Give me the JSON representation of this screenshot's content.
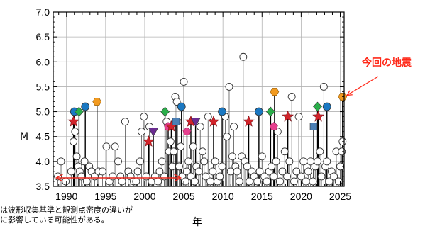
{
  "chart_data": {
    "type": "scatter",
    "title": "",
    "xlabel": "年",
    "ylabel": "M",
    "xlim": [
      1988.3,
      2025.5
    ],
    "ylim": [
      3.5,
      7.0
    ],
    "x_ticks": [
      "1990",
      "1995",
      "2000",
      "2005",
      "2010",
      "2015",
      "2020",
      "2025"
    ],
    "y_ticks": [
      "3.5",
      "4.0",
      "4.5",
      "5.0",
      "5.5",
      "6.0",
      "6.5",
      "7.0"
    ],
    "grid": true,
    "note_lines": [
      "は波形収集基準と観測点密度の違いが",
      "に影響している可能性がある。"
    ],
    "annotation": {
      "text": "今回の地震",
      "color": "#ff2a1a"
    },
    "period_arrow": {
      "from": 1988.7,
      "to": 2004.6,
      "color": "#e5281e"
    },
    "small_events": [
      [
        1988.9,
        3.7
      ],
      [
        1989.3,
        4.0
      ],
      [
        1989.9,
        3.6
      ],
      [
        1990.6,
        3.8
      ],
      [
        1990.9,
        4.4
      ],
      [
        1991.1,
        4.6
      ],
      [
        1991.3,
        4.1
      ],
      [
        1991.5,
        3.9
      ],
      [
        1991.7,
        3.8
      ],
      [
        1991.9,
        3.7
      ],
      [
        1992.3,
        4.0
      ],
      [
        1992.6,
        3.6
      ],
      [
        1992.9,
        3.9
      ],
      [
        1993.2,
        3.8
      ],
      [
        1993.6,
        3.7
      ],
      [
        1994.1,
        3.8
      ],
      [
        1994.6,
        3.8
      ],
      [
        1995.1,
        4.3
      ],
      [
        1995.5,
        3.6
      ],
      [
        1995.9,
        3.7
      ],
      [
        1996.2,
        4.3
      ],
      [
        1996.6,
        4.0
      ],
      [
        1996.9,
        3.7
      ],
      [
        1997.1,
        3.6
      ],
      [
        1997.5,
        4.8
      ],
      [
        1997.9,
        3.8
      ],
      [
        1998.2,
        3.7
      ],
      [
        1998.6,
        3.6
      ],
      [
        1998.9,
        3.6
      ],
      [
        1999.1,
        3.8
      ],
      [
        1999.4,
        4.0
      ],
      [
        1999.6,
        4.6
      ],
      [
        1999.9,
        4.9
      ],
      [
        2000.2,
        3.7
      ],
      [
        2000.6,
        4.7
      ],
      [
        2000.9,
        3.6
      ],
      [
        2001.3,
        3.7
      ],
      [
        2001.7,
        3.6
      ],
      [
        2001.9,
        3.8
      ],
      [
        2002.2,
        4.0
      ],
      [
        2002.5,
        3.7
      ],
      [
        2002.8,
        4.8
      ],
      [
        2003.1,
        4.2
      ],
      [
        2003.3,
        4.4
      ],
      [
        2003.5,
        3.9
      ],
      [
        2003.7,
        4.2
      ],
      [
        2003.9,
        5.3
      ],
      [
        2004.1,
        5.2
      ],
      [
        2004.2,
        4.8
      ],
      [
        2004.4,
        3.9
      ],
      [
        2004.6,
        4.3
      ],
      [
        2004.8,
        3.7
      ],
      [
        2005.0,
        5.6
      ],
      [
        2005.2,
        3.6
      ],
      [
        2005.4,
        3.8
      ],
      [
        2005.6,
        4.0
      ],
      [
        2005.9,
        3.7
      ],
      [
        2006.2,
        4.3
      ],
      [
        2006.4,
        3.6
      ],
      [
        2006.6,
        3.9
      ],
      [
        2006.9,
        3.8
      ],
      [
        2007.1,
        4.7
      ],
      [
        2007.4,
        4.2
      ],
      [
        2007.6,
        4.0
      ],
      [
        2007.8,
        3.7
      ],
      [
        2008.1,
        4.9
      ],
      [
        2008.4,
        3.6
      ],
      [
        2008.7,
        3.8
      ],
      [
        2009.0,
        4.0
      ],
      [
        2009.3,
        3.6
      ],
      [
        2009.6,
        3.7
      ],
      [
        2009.9,
        3.9
      ],
      [
        2010.3,
        4.9
      ],
      [
        2010.5,
        4.5
      ],
      [
        2010.8,
        5.5
      ],
      [
        2011.0,
        3.8
      ],
      [
        2011.2,
        4.1
      ],
      [
        2011.4,
        4.7
      ],
      [
        2011.6,
        3.9
      ],
      [
        2011.8,
        3.8
      ],
      [
        2012.1,
        3.6
      ],
      [
        2012.4,
        4.1
      ],
      [
        2012.6,
        6.1
      ],
      [
        2012.8,
        4.0
      ],
      [
        2013.1,
        3.9
      ],
      [
        2013.4,
        3.6
      ],
      [
        2013.7,
        3.8
      ],
      [
        2014.0,
        3.7
      ],
      [
        2014.4,
        3.6
      ],
      [
        2014.7,
        3.8
      ],
      [
        2015.0,
        4.1
      ],
      [
        2015.3,
        3.7
      ],
      [
        2015.6,
        3.6
      ],
      [
        2015.9,
        3.8
      ],
      [
        2016.2,
        3.9
      ],
      [
        2016.5,
        3.7
      ],
      [
        2016.8,
        4.0
      ],
      [
        2017.0,
        4.6
      ],
      [
        2017.3,
        3.6
      ],
      [
        2017.6,
        3.8
      ],
      [
        2017.9,
        4.2
      ],
      [
        2018.2,
        3.7
      ],
      [
        2018.5,
        4.0
      ],
      [
        2018.8,
        5.3
      ],
      [
        2019.1,
        3.6
      ],
      [
        2019.4,
        3.8
      ],
      [
        2019.7,
        4.9
      ],
      [
        2020.0,
        3.7
      ],
      [
        2020.3,
        4.0
      ],
      [
        2020.6,
        3.6
      ],
      [
        2020.9,
        3.8
      ],
      [
        2021.2,
        4.0
      ],
      [
        2021.5,
        3.6
      ],
      [
        2021.8,
        3.9
      ],
      [
        2022.1,
        4.0
      ],
      [
        2022.4,
        4.2
      ],
      [
        2022.6,
        3.7
      ],
      [
        2022.9,
        5.5
      ],
      [
        2023.1,
        3.9
      ],
      [
        2023.3,
        4.0
      ],
      [
        2023.6,
        3.6
      ],
      [
        2023.9,
        3.8
      ],
      [
        2024.2,
        3.7
      ],
      [
        2024.5,
        4.2
      ],
      [
        2024.8,
        3.6
      ],
      [
        2025.0,
        3.9
      ],
      [
        2025.2,
        4.2
      ],
      [
        2025.3,
        4.4
      ]
    ],
    "marked_events": [
      {
        "x": 1990.9,
        "y": 4.8,
        "shape": "star",
        "color": "#d2232a"
      },
      {
        "x": 1991.0,
        "y": 5.0,
        "shape": "circle",
        "color": "#1a78c2"
      },
      {
        "x": 1991.6,
        "y": 5.0,
        "shape": "diamond",
        "color": "#2aae4a"
      },
      {
        "x": 1992.4,
        "y": 5.1,
        "shape": "circle",
        "color": "#1a78c2"
      },
      {
        "x": 1993.9,
        "y": 5.2,
        "shape": "hexagon",
        "color": "#f29a1f"
      },
      {
        "x": 2000.5,
        "y": 4.4,
        "shape": "star",
        "color": "#d2232a"
      },
      {
        "x": 2001.1,
        "y": 4.6,
        "shape": "triangle-down",
        "color": "#6a2c91"
      },
      {
        "x": 2002.6,
        "y": 5.0,
        "shape": "diamond",
        "color": "#2aae4a"
      },
      {
        "x": 2003.0,
        "y": 4.7,
        "shape": "pentagon",
        "color": "#e6408f"
      },
      {
        "x": 2003.4,
        "y": 4.7,
        "shape": "star",
        "color": "#d2232a"
      },
      {
        "x": 2004.0,
        "y": 4.8,
        "shape": "square",
        "color": "#4a7fb5"
      },
      {
        "x": 2004.7,
        "y": 5.1,
        "shape": "circle",
        "color": "#1a78c2"
      },
      {
        "x": 2005.4,
        "y": 4.6,
        "shape": "pentagon",
        "color": "#e6408f"
      },
      {
        "x": 2005.9,
        "y": 4.8,
        "shape": "star",
        "color": "#d2232a"
      },
      {
        "x": 2006.5,
        "y": 4.8,
        "shape": "triangle-down",
        "color": "#6a2c91"
      },
      {
        "x": 2008.8,
        "y": 4.8,
        "shape": "star",
        "color": "#d2232a"
      },
      {
        "x": 2009.9,
        "y": 5.0,
        "shape": "circle",
        "color": "#1a78c2"
      },
      {
        "x": 2013.3,
        "y": 4.8,
        "shape": "star",
        "color": "#d2232a"
      },
      {
        "x": 2014.6,
        "y": 5.0,
        "shape": "circle",
        "color": "#1a78c2"
      },
      {
        "x": 2016.1,
        "y": 5.0,
        "shape": "diamond",
        "color": "#2aae4a"
      },
      {
        "x": 2016.5,
        "y": 4.7,
        "shape": "pentagon",
        "color": "#e6408f"
      },
      {
        "x": 2016.6,
        "y": 5.4,
        "shape": "hexagon",
        "color": "#f29a1f"
      },
      {
        "x": 2018.3,
        "y": 4.9,
        "shape": "star",
        "color": "#d2232a"
      },
      {
        "x": 2021.6,
        "y": 4.7,
        "shape": "square",
        "color": "#4a7fb5"
      },
      {
        "x": 2022.2,
        "y": 4.9,
        "shape": "star",
        "color": "#d2232a"
      },
      {
        "x": 2022.1,
        "y": 5.1,
        "shape": "diamond",
        "color": "#2aae4a"
      },
      {
        "x": 2023.3,
        "y": 5.1,
        "shape": "circle",
        "color": "#1a78c2"
      },
      {
        "x": 2025.3,
        "y": 5.3,
        "shape": "hexagon",
        "color": "#f29a1f"
      }
    ]
  }
}
